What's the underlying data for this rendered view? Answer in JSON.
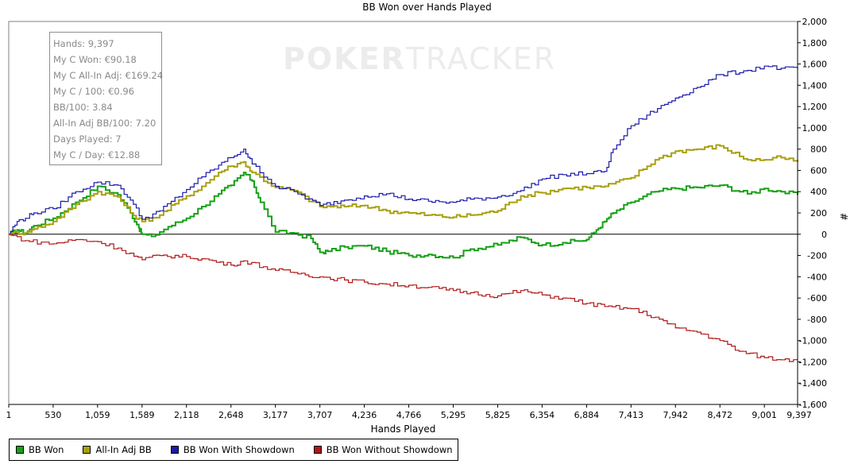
{
  "chart_data": {
    "type": "line",
    "title": "BB Won over Hands Played",
    "xlabel": "Hands Played",
    "ylabel": "#",
    "xlim": [
      1,
      9397
    ],
    "ylim": [
      -1600,
      2000
    ],
    "x_ticks": [
      "1",
      "530",
      "1,059",
      "1,589",
      "2,118",
      "2,648",
      "3,177",
      "3,707",
      "4,236",
      "4,766",
      "5,295",
      "5,825",
      "6,354",
      "6,884",
      "7,413",
      "7,942",
      "8,472",
      "9,001",
      "9,397"
    ],
    "y_ticks": [
      "2,000",
      "1,800",
      "1,600",
      "1,400",
      "1,200",
      "1,000",
      "800",
      "600",
      "400",
      "200",
      "0",
      "-200",
      "-400",
      "-600",
      "-800",
      "-1,000",
      "-1,200",
      "-1,400",
      "-1,600"
    ],
    "legend_position": "bottom-left",
    "series": [
      {
        "name": "BB Won",
        "color": "#16a016",
        "x": [
          1,
          100,
          200,
          300,
          530,
          800,
          1059,
          1300,
          1450,
          1550,
          1589,
          1700,
          1900,
          2118,
          2300,
          2500,
          2648,
          2800,
          2900,
          3000,
          3177,
          3400,
          3600,
          3707,
          3800,
          4000,
          4236,
          4500,
          4766,
          5000,
          5295,
          5500,
          5825,
          6100,
          6354,
          6600,
          6884,
          7000,
          7100,
          7200,
          7413,
          7700,
          7942,
          8200,
          8472,
          8800,
          9001,
          9200,
          9397
        ],
        "values": [
          0,
          40,
          10,
          80,
          150,
          300,
          450,
          370,
          200,
          60,
          0,
          -20,
          70,
          150,
          260,
          380,
          460,
          580,
          500,
          300,
          20,
          10,
          -40,
          -170,
          -160,
          -120,
          -110,
          -160,
          -200,
          -190,
          -220,
          -140,
          -100,
          -30,
          -100,
          -80,
          -50,
          40,
          120,
          200,
          300,
          400,
          430,
          440,
          460,
          380,
          430,
          400,
          370
        ]
      },
      {
        "name": "All-In Adj BB",
        "color": "#a8a010",
        "x": [
          1,
          100,
          200,
          300,
          530,
          800,
          1059,
          1300,
          1450,
          1589,
          1800,
          2118,
          2300,
          2500,
          2648,
          2800,
          2900,
          3177,
          3400,
          3707,
          4000,
          4236,
          4500,
          4766,
          5000,
          5295,
          5500,
          5825,
          6100,
          6354,
          6600,
          6884,
          7100,
          7413,
          7700,
          7942,
          8200,
          8472,
          8800,
          9001,
          9200,
          9397
        ],
        "values": [
          0,
          20,
          10,
          50,
          120,
          280,
          400,
          350,
          200,
          120,
          180,
          360,
          450,
          580,
          640,
          680,
          580,
          440,
          410,
          260,
          260,
          270,
          220,
          200,
          180,
          160,
          180,
          220,
          360,
          390,
          430,
          440,
          450,
          530,
          700,
          780,
          800,
          830,
          700,
          700,
          720,
          680
        ]
      },
      {
        "name": "BB Won With Showdown",
        "color": "#1a1aaa",
        "x": [
          1,
          100,
          200,
          300,
          530,
          800,
          1059,
          1300,
          1450,
          1589,
          1800,
          2118,
          2300,
          2500,
          2648,
          2800,
          2900,
          3177,
          3400,
          3707,
          4000,
          4236,
          4500,
          4766,
          5000,
          5295,
          5500,
          5825,
          6100,
          6354,
          6600,
          6884,
          7100,
          7200,
          7413,
          7600,
          7942,
          8200,
          8472,
          8800,
          9001,
          9200,
          9397
        ],
        "values": [
          0,
          120,
          150,
          200,
          240,
          400,
          490,
          460,
          320,
          140,
          220,
          420,
          540,
          650,
          720,
          800,
          660,
          450,
          400,
          270,
          320,
          360,
          380,
          330,
          310,
          300,
          330,
          350,
          410,
          520,
          560,
          570,
          590,
          800,
          1020,
          1120,
          1280,
          1380,
          1500,
          1540,
          1580,
          1560,
          1550
        ]
      },
      {
        "name": "BB Won Without Showdown",
        "color": "#b01818",
        "x": [
          1,
          200,
          530,
          800,
          1059,
          1300,
          1589,
          1800,
          2118,
          2300,
          2648,
          2800,
          3177,
          3400,
          3707,
          4000,
          4236,
          4500,
          4766,
          5000,
          5295,
          5500,
          5825,
          6100,
          6354,
          6600,
          6884,
          7100,
          7413,
          7700,
          7942,
          8200,
          8472,
          8700,
          9001,
          9200,
          9397
        ],
        "values": [
          0,
          -60,
          -90,
          -50,
          -70,
          -130,
          -240,
          -200,
          -210,
          -230,
          -290,
          -250,
          -340,
          -360,
          -400,
          -430,
          -450,
          -470,
          -480,
          -500,
          -530,
          -550,
          -580,
          -530,
          -570,
          -600,
          -650,
          -680,
          -700,
          -780,
          -880,
          -920,
          -1000,
          -1100,
          -1160,
          -1180,
          -1180
        ]
      }
    ]
  },
  "stats_box": {
    "lines": [
      "Hands: 9,397",
      "My C Won: €90.18",
      "My C All-In Adj: €169.24",
      "My C / 100: €0.96",
      "BB/100: 3.84",
      "All-In Adj BB/100: 7.20",
      "Days Played: 7",
      "My C / Day: €12.88"
    ]
  },
  "watermark": {
    "poker": "POKER",
    "tracker": "TRACKER"
  }
}
